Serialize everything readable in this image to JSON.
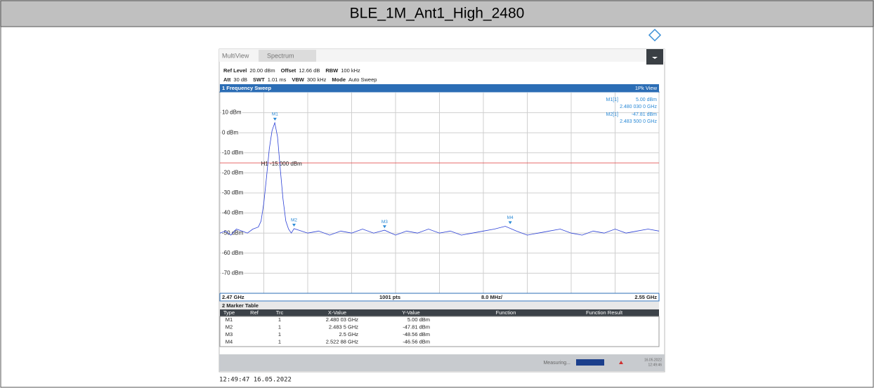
{
  "title": "BLE_1M_Ant1_High_2480",
  "timestamp": "12:49:47  16.05.2022",
  "analyzer": {
    "tabs": [
      "MultiView",
      "Spectrum"
    ],
    "settings_row1": [
      "Ref Level",
      "20.00 dBm",
      "Offset",
      "12.66 dB",
      "RBW",
      "100 kHz"
    ],
    "settings_row2": [
      "Att",
      "30 dB",
      "SWT",
      "1.01 ms",
      "VBW",
      "300 kHz",
      "Mode",
      "Auto Sweep"
    ],
    "window_title": "1 Frequency Sweep",
    "view": "1Pk View",
    "marker_readout": [
      [
        "M1[1]",
        "5.00 dBm",
        "2.480 030 0 GHz"
      ],
      [
        "M2[1]",
        "-47.81 dBm",
        "2.483 500 0 GHz"
      ]
    ],
    "footer": [
      "2.47 GHz",
      "1001 pts",
      "8.0 MHz/",
      "2.55 GHz"
    ],
    "marker_table": {
      "title": "2 Marker Table",
      "headers": [
        "Type",
        "Ref",
        "Trc",
        "X-Value",
        "Y-Value",
        "Function",
        "Function Result"
      ],
      "rows": [
        [
          "M1",
          "1",
          "2.480 03 GHz",
          "5.00 dBm"
        ],
        [
          "M2",
          "1",
          "2.483 5 GHz",
          "-47.81 dBm"
        ],
        [
          "M3",
          "1",
          "2.5 GHz",
          "-48.56 dBm"
        ],
        [
          "M4",
          "1",
          "2.522 88 GHz",
          "-46.56 dBm"
        ]
      ]
    },
    "status": {
      "text": "Measuring...",
      "date": "16.05.2022",
      "time": "12:49:46"
    }
  },
  "chart_data": {
    "type": "line",
    "color": "#2a3fd6",
    "xlim": [
      2.47,
      2.55
    ],
    "ylim": [
      -80,
      20
    ],
    "xticks": [
      2.47,
      2.478,
      2.486,
      2.494,
      2.502,
      2.51,
      2.518,
      2.526,
      2.534,
      2.542,
      2.55
    ],
    "yticks": [
      {
        "value": 10,
        "label": "10 dBm"
      },
      {
        "value": 0,
        "label": "0 dBm"
      },
      {
        "value": -10,
        "label": "-10 dBm"
      },
      {
        "value": -20,
        "label": "-20 dBm"
      },
      {
        "value": -30,
        "label": "-30 dBm"
      },
      {
        "value": -40,
        "label": "-40 dBm"
      },
      {
        "value": -50,
        "label": "-50 dBm"
      },
      {
        "value": -60,
        "label": "-60 dBm"
      },
      {
        "value": -70,
        "label": "-70 dBm"
      }
    ],
    "x": [
      2.47,
      2.471,
      2.472,
      2.473,
      2.474,
      2.475,
      2.476,
      2.477,
      2.4775,
      2.478,
      2.4785,
      2.479,
      2.4795,
      2.48,
      2.4805,
      2.481,
      2.4815,
      2.482,
      2.4825,
      2.483,
      2.4835,
      2.486,
      2.488,
      2.49,
      2.492,
      2.494,
      2.496,
      2.498,
      2.5,
      2.502,
      2.504,
      2.506,
      2.508,
      2.51,
      2.512,
      2.514,
      2.516,
      2.518,
      2.52,
      2.522,
      2.524,
      2.526,
      2.528,
      2.53,
      2.532,
      2.534,
      2.536,
      2.538,
      2.54,
      2.542,
      2.544,
      2.546,
      2.548,
      2.55
    ],
    "values": [
      -50,
      -49,
      -51,
      -48,
      -49,
      -50,
      -48,
      -47,
      -44,
      -35,
      -22,
      -8,
      1,
      5,
      -2,
      -18,
      -33,
      -44,
      -48,
      -50,
      -47.81,
      -50,
      -49,
      -51,
      -49,
      -50,
      -48,
      -50,
      -48.56,
      -51,
      -49,
      -50,
      -48,
      -50,
      -49,
      -51,
      -50,
      -49,
      -48,
      -46.6,
      -49,
      -51,
      -50,
      -49,
      -48,
      -50,
      -51,
      -49,
      -50,
      -48,
      -50,
      -49,
      -48,
      -49
    ],
    "threshold": {
      "value": -15,
      "label": "H1 -15.000 dBm",
      "color": "#e03a3a"
    },
    "markers": [
      {
        "name": "M1",
        "x": 2.48003,
        "y": 5
      },
      {
        "name": "M2",
        "x": 2.4835,
        "y": -47.81
      },
      {
        "name": "M3",
        "x": 2.5,
        "y": -48.56
      },
      {
        "name": "M4",
        "x": 2.52288,
        "y": -46.56
      }
    ]
  }
}
